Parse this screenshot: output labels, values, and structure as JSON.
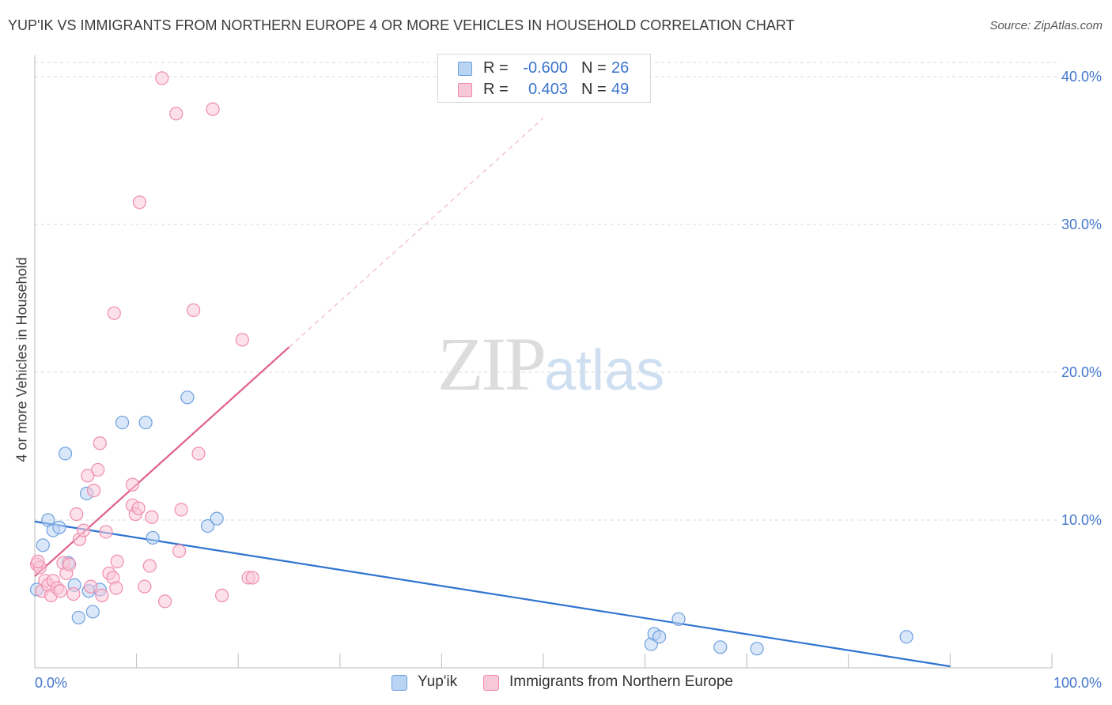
{
  "chart_data": {
    "type": "scatter",
    "title": "YUP'IK VS IMMIGRANTS FROM NORTHERN EUROPE 4 OR MORE VEHICLES IN HOUSEHOLD CORRELATION CHART",
    "source": "Source: ZipAtlas.com",
    "xlabel": "",
    "ylabel": "4 or more Vehicles in Household",
    "xlim": [
      0,
      100
    ],
    "ylim": [
      0,
      41
    ],
    "x_tick_labels": [
      {
        "value": 0,
        "label": "0.0%"
      },
      {
        "value": 100,
        "label": "100.0%"
      }
    ],
    "y_tick_labels": [
      {
        "value": 10,
        "label": "10.0%"
      },
      {
        "value": 20,
        "label": "20.0%"
      },
      {
        "value": 30,
        "label": "30.0%"
      },
      {
        "value": 40,
        "label": "40.0%"
      }
    ],
    "watermark": {
      "zip": "ZIP",
      "atlas": "atlas"
    },
    "series": [
      {
        "name": "Yup'ik",
        "color": "#6ea0e0",
        "fill": "#b9d3f3",
        "line_color": "#2f74d0",
        "R": "-0.600",
        "N": "26",
        "trend": {
          "x0": 0,
          "y0": 9.9,
          "x1": 90,
          "y1": 0.1
        },
        "points": [
          [
            0.2,
            5.3
          ],
          [
            0.8,
            8.3
          ],
          [
            1.3,
            10.0
          ],
          [
            1.8,
            9.3
          ],
          [
            2.4,
            9.5
          ],
          [
            3.0,
            14.5
          ],
          [
            3.3,
            7.1
          ],
          [
            3.9,
            5.6
          ],
          [
            4.3,
            3.4
          ],
          [
            5.1,
            11.8
          ],
          [
            5.3,
            5.2
          ],
          [
            5.7,
            3.8
          ],
          [
            6.4,
            5.3
          ],
          [
            8.6,
            16.6
          ],
          [
            10.9,
            16.6
          ],
          [
            11.6,
            8.8
          ],
          [
            15.0,
            18.3
          ],
          [
            17.0,
            9.6
          ],
          [
            17.9,
            10.1
          ],
          [
            60.6,
            1.6
          ],
          [
            60.9,
            2.3
          ],
          [
            61.4,
            2.1
          ],
          [
            63.3,
            3.3
          ],
          [
            67.4,
            1.4
          ],
          [
            71.0,
            1.3
          ],
          [
            85.7,
            2.1
          ]
        ]
      },
      {
        "name": "Immigrants from Northern Europe",
        "color": "#f08cac",
        "fill": "#f9c8d8",
        "line_color": "#e0608a",
        "R": "0.403",
        "N": "49",
        "trend": {
          "x0": 0,
          "y0": 6.2,
          "x1": 25,
          "y1": 21.7
        },
        "trend_extended": {
          "x0": 25,
          "y0": 21.7,
          "x1": 50,
          "y1": 37.2
        },
        "points": [
          [
            0.2,
            7.0
          ],
          [
            0.5,
            6.8
          ],
          [
            0.7,
            5.2
          ],
          [
            1.0,
            5.9
          ],
          [
            1.3,
            5.6
          ],
          [
            1.6,
            4.9
          ],
          [
            1.8,
            5.9
          ],
          [
            2.2,
            5.4
          ],
          [
            2.5,
            5.2
          ],
          [
            2.8,
            7.1
          ],
          [
            3.1,
            6.4
          ],
          [
            3.4,
            7.0
          ],
          [
            3.8,
            5.0
          ],
          [
            4.1,
            10.4
          ],
          [
            4.4,
            8.7
          ],
          [
            4.8,
            9.3
          ],
          [
            5.2,
            13.0
          ],
          [
            5.5,
            5.5
          ],
          [
            5.8,
            12.0
          ],
          [
            6.2,
            13.4
          ],
          [
            6.4,
            15.2
          ],
          [
            6.6,
            4.9
          ],
          [
            7.0,
            9.2
          ],
          [
            7.3,
            6.4
          ],
          [
            7.7,
            6.1
          ],
          [
            7.8,
            24.0
          ],
          [
            8.0,
            5.4
          ],
          [
            8.1,
            7.2
          ],
          [
            9.6,
            11.0
          ],
          [
            9.6,
            12.4
          ],
          [
            9.9,
            10.4
          ],
          [
            10.2,
            10.8
          ],
          [
            10.3,
            31.5
          ],
          [
            10.8,
            5.5
          ],
          [
            11.3,
            6.9
          ],
          [
            11.5,
            10.2
          ],
          [
            12.5,
            39.9
          ],
          [
            12.8,
            4.5
          ],
          [
            13.9,
            37.5
          ],
          [
            14.2,
            7.9
          ],
          [
            14.4,
            10.7
          ],
          [
            15.6,
            24.2
          ],
          [
            16.1,
            14.5
          ],
          [
            17.5,
            37.8
          ],
          [
            18.4,
            4.9
          ],
          [
            20.4,
            22.2
          ],
          [
            21.0,
            6.1
          ],
          [
            21.4,
            6.1
          ],
          [
            0.3,
            7.2
          ]
        ]
      }
    ]
  }
}
